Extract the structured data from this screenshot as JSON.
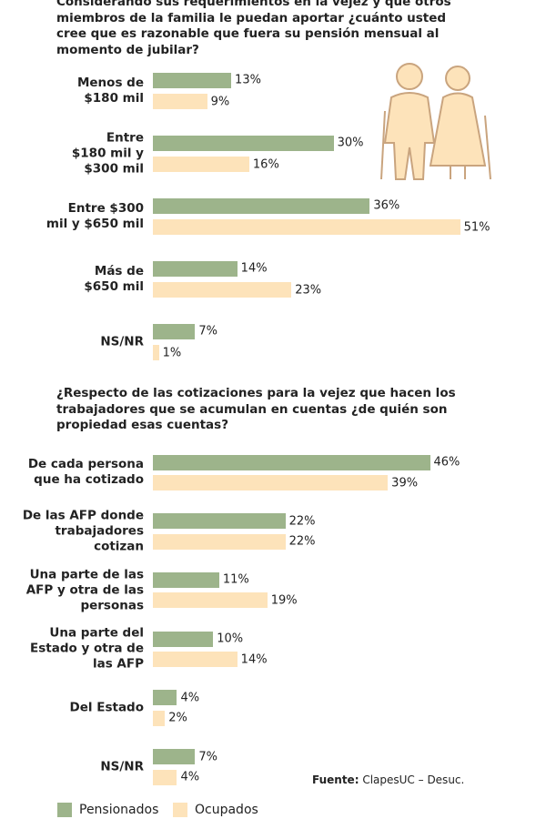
{
  "chart_data": [
    {
      "type": "bar",
      "orientation": "horizontal",
      "title": "Considerando sus requerimientos en la vejez y que otros miembros de la familia le puedan aportar ¿cuánto usted cree que es razonable que fuera su pensión mensual al momento de jubilar?",
      "categories": [
        "Menos de\n$180 mil",
        "Entre\n$180 mil y\n$300 mil",
        "Entre $300\nmil y $650 mil",
        "Más de\n$650 mil",
        "NS/NR"
      ],
      "series": [
        {
          "name": "Pensionados",
          "color": "#9db48b",
          "values": [
            13,
            30,
            36,
            14,
            7
          ],
          "value_labels": [
            "13%",
            "30%",
            "36%",
            "14%",
            "7%"
          ]
        },
        {
          "name": "Ocupados",
          "color": "#fde3ba",
          "values": [
            9,
            16,
            51,
            23,
            1
          ],
          "value_labels": [
            "9%",
            "16%",
            "51%",
            "23%",
            "1%"
          ]
        }
      ]
    },
    {
      "type": "bar",
      "orientation": "horizontal",
      "title": "¿Respecto de las cotizaciones para la vejez que hacen los trabajadores que se acumulan en cuentas ¿de quién son propiedad esas cuentas?",
      "categories": [
        "De cada persona\nque ha cotizado",
        "De las AFP donde\ntrabajadores\ncotizan",
        "Una parte de las\nAFP y otra de las\npersonas",
        "Una parte del\nEstado y otra de\nlas AFP",
        "Del Estado",
        "NS/NR"
      ],
      "series": [
        {
          "name": "Pensionados",
          "color": "#9db48b",
          "values": [
            46,
            22,
            11,
            10,
            4,
            7
          ],
          "value_labels": [
            "46%",
            "22%",
            "11%",
            "10%",
            "4%",
            "7%"
          ]
        },
        {
          "name": "Ocupados",
          "color": "#fde3ba",
          "values": [
            39,
            22,
            19,
            14,
            2,
            4
          ],
          "value_labels": [
            "39%",
            "22%",
            "19%",
            "14%",
            "2%",
            "4%"
          ]
        }
      ],
      "legend": "bottom-left",
      "source_label": "Fuente:",
      "source": "ClapesUC – Desuc."
    }
  ]
}
